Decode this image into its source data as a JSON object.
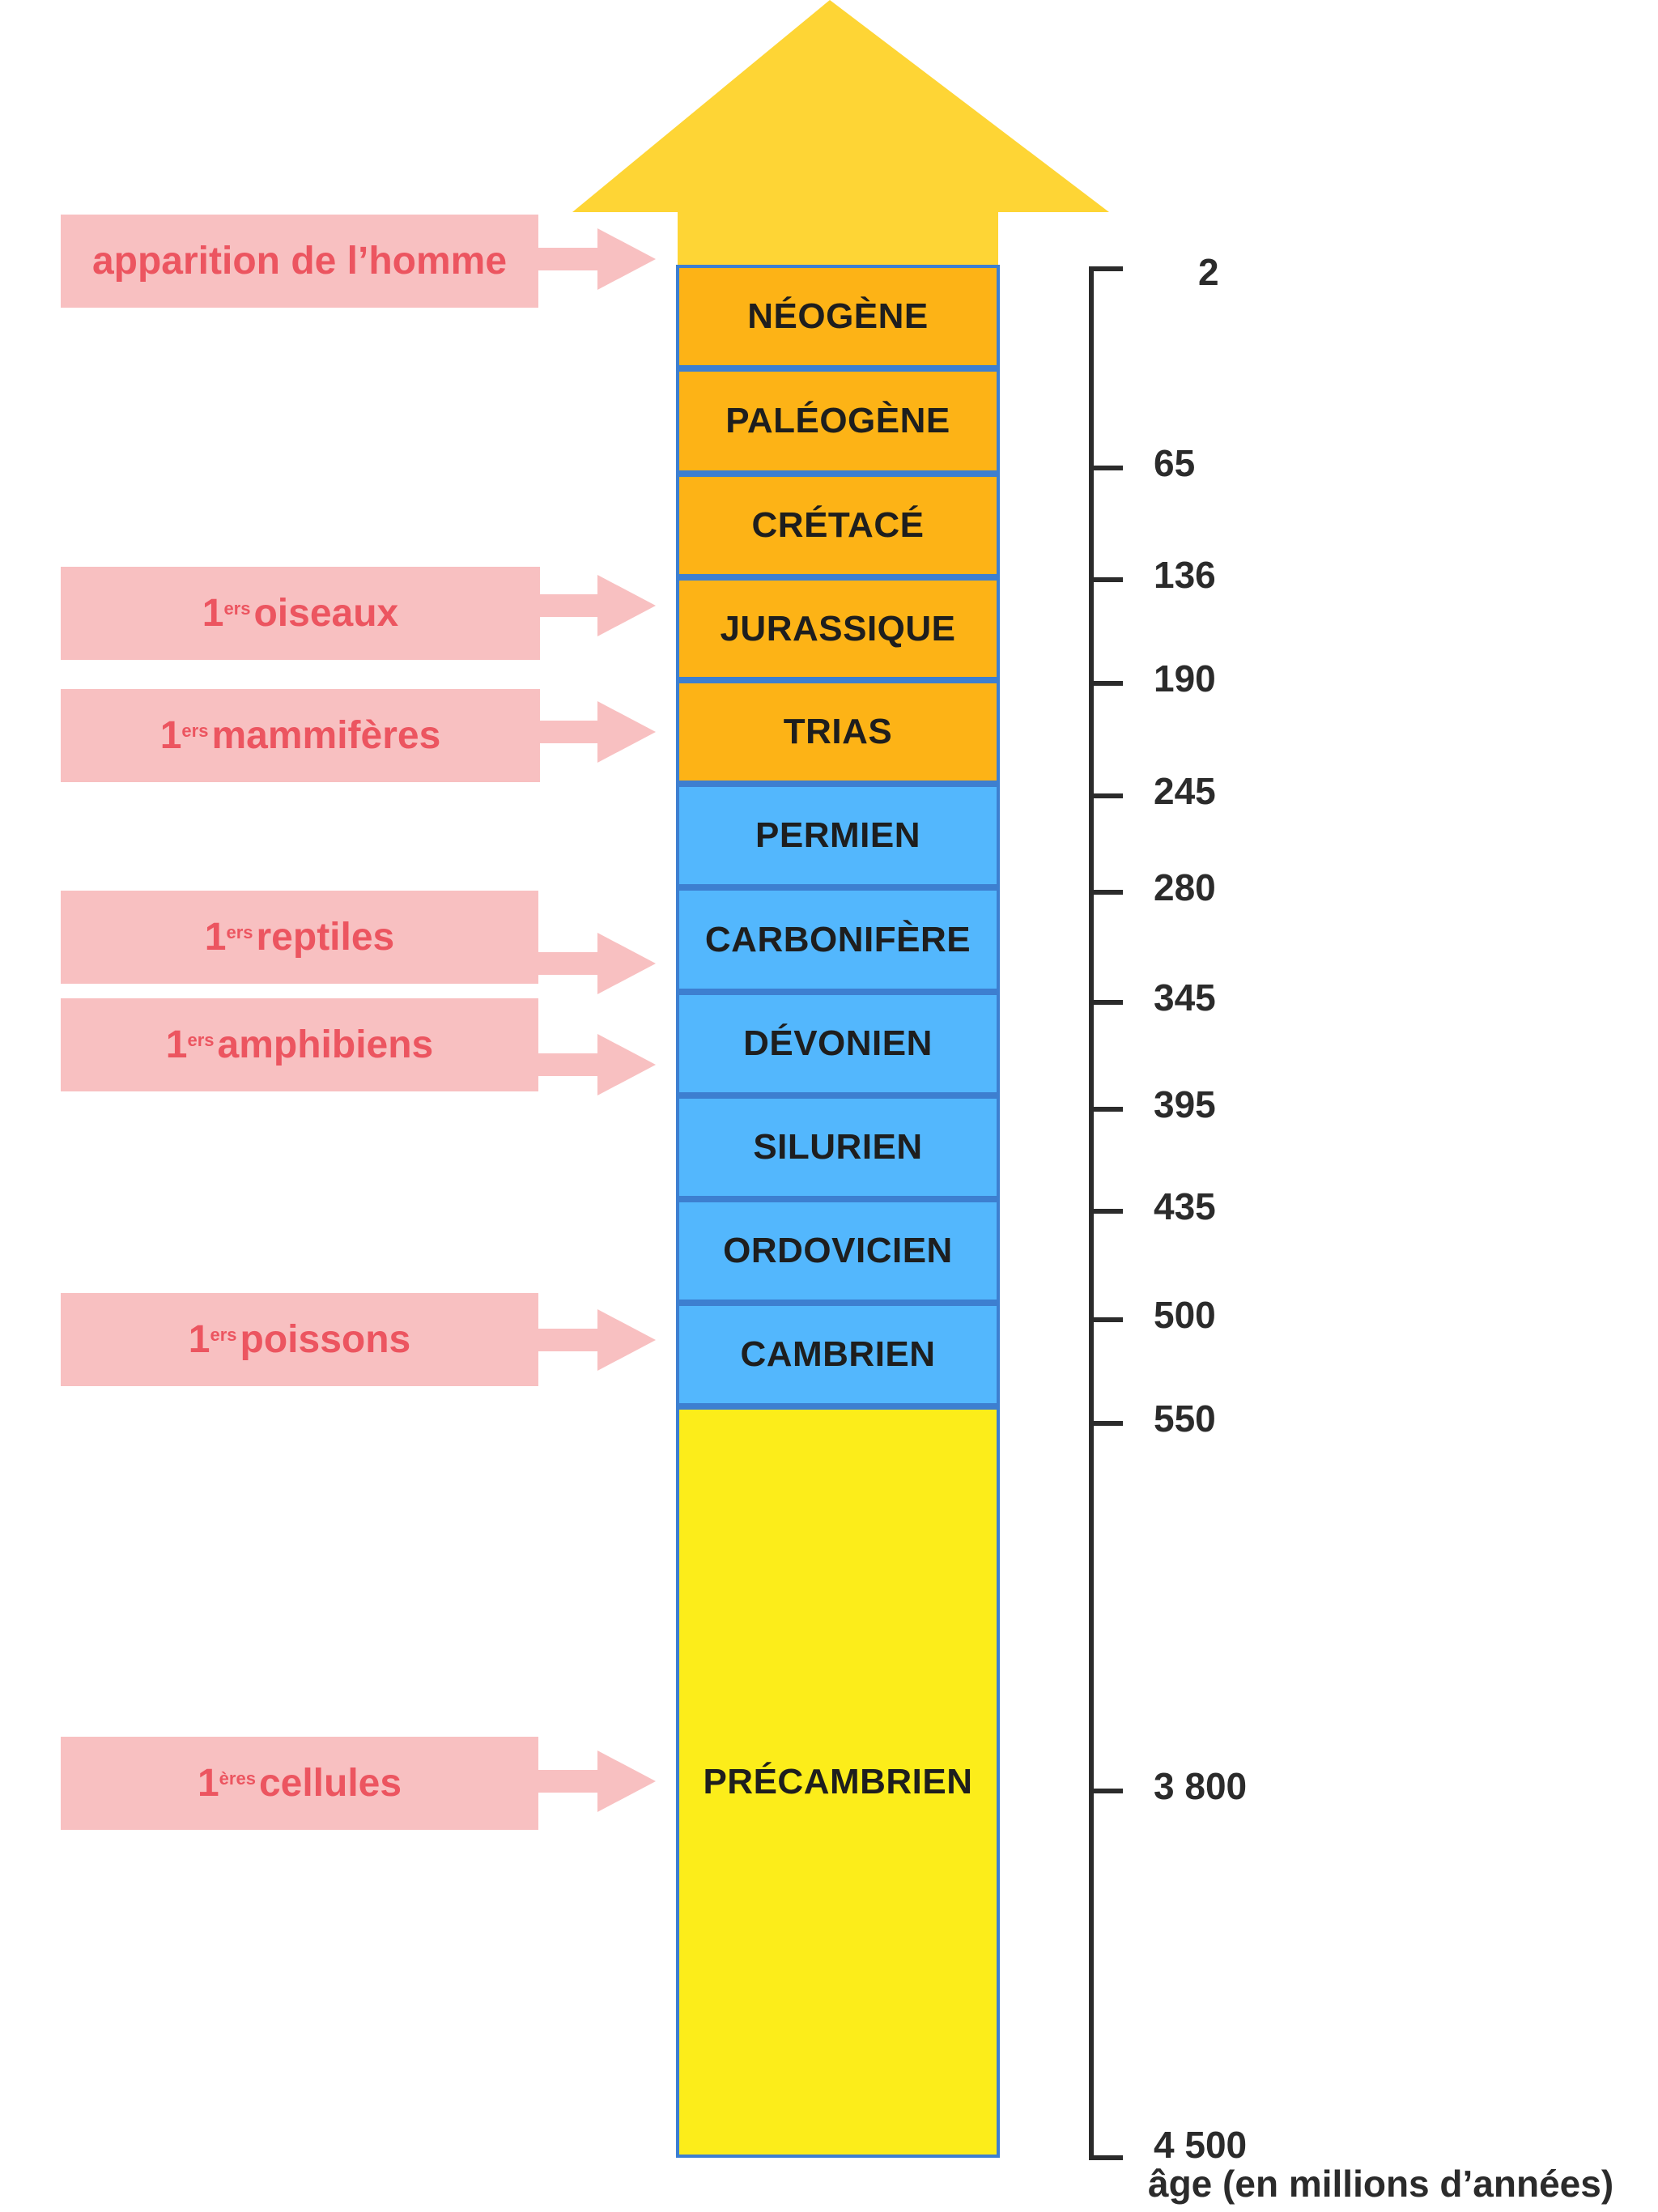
{
  "colors": {
    "mesozoic_cenozoic": "#fdb316",
    "paleozoic": "#53b7fd",
    "precambrian": "#fced1a",
    "arrow": "#fed535",
    "event_bg": "#f8c0c1",
    "event_text": "#ec5560",
    "border": "#3d7fd0"
  },
  "periods": [
    {
      "name": "NÉOGÈNE",
      "group": "mesozoic_cenozoic"
    },
    {
      "name": "PALÉOGÈNE",
      "group": "mesozoic_cenozoic"
    },
    {
      "name": "CRÉTACÉ",
      "group": "mesozoic_cenozoic"
    },
    {
      "name": "JURASSIQUE",
      "group": "mesozoic_cenozoic"
    },
    {
      "name": "TRIAS",
      "group": "mesozoic_cenozoic"
    },
    {
      "name": "PERMIEN",
      "group": "paleozoic"
    },
    {
      "name": "CARBONIFÈRE",
      "group": "paleozoic"
    },
    {
      "name": "DÉVONIEN",
      "group": "paleozoic"
    },
    {
      "name": "SILURIEN",
      "group": "paleozoic"
    },
    {
      "name": "ORDOVICIEN",
      "group": "paleozoic"
    },
    {
      "name": "CAMBRIEN",
      "group": "paleozoic"
    },
    {
      "name": "PRÉCAMBRIEN",
      "group": "precambrian"
    }
  ],
  "events": [
    {
      "base": "",
      "sup": "",
      "text": "apparition de l’homme"
    },
    {
      "base": "1",
      "sup": "ers",
      "text": " oiseaux"
    },
    {
      "base": "1",
      "sup": "ers",
      "text": " mammifères"
    },
    {
      "base": "1",
      "sup": "ers",
      "text": " reptiles"
    },
    {
      "base": "1",
      "sup": "ers",
      "text": " amphibiens"
    },
    {
      "base": "1",
      "sup": "ers",
      "text": " poissons"
    },
    {
      "base": "1",
      "sup": "ères",
      "text": " cellules"
    }
  ],
  "scale": {
    "ticks": [
      "2",
      "65",
      "136",
      "190",
      "245",
      "280",
      "345",
      "395",
      "435",
      "500",
      "550",
      "3 800",
      "4 500"
    ],
    "caption": "âge (en millions d’années)"
  }
}
